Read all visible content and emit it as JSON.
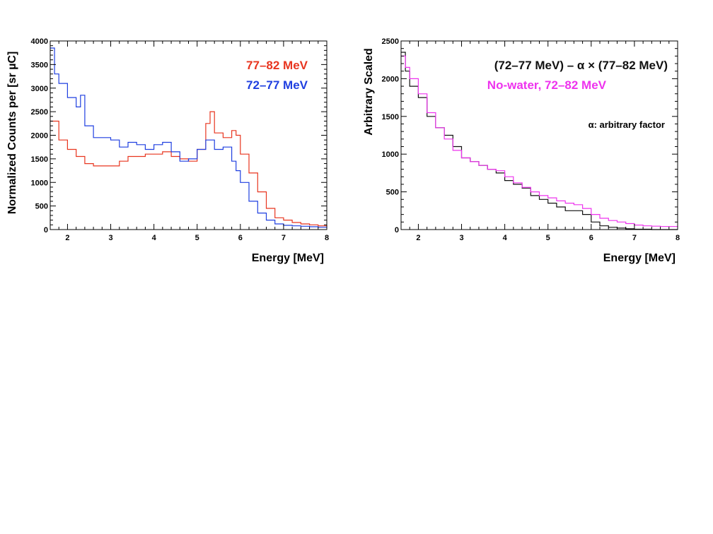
{
  "chart_data": [
    {
      "type": "line",
      "title": "",
      "xlabel": "Energy [MeV]",
      "ylabel": "Normalized Counts per [sr µC]",
      "xlim": [
        1.6,
        8.0
      ],
      "ylim": [
        0,
        4000
      ],
      "xticks": [
        2,
        3,
        4,
        5,
        6,
        7,
        8
      ],
      "yticks": [
        0,
        500,
        1000,
        1500,
        2000,
        2500,
        3000,
        3500,
        4000
      ],
      "grid": false,
      "legend": "top-right",
      "series": [
        {
          "name": "77–82 MeV",
          "color": "#e8351f",
          "x": [
            1.6,
            1.8,
            2.0,
            2.2,
            2.4,
            2.6,
            2.8,
            3.0,
            3.2,
            3.4,
            3.6,
            3.8,
            4.0,
            4.2,
            4.4,
            4.6,
            4.8,
            5.0,
            5.2,
            5.3,
            5.4,
            5.6,
            5.8,
            5.9,
            6.0,
            6.2,
            6.4,
            6.6,
            6.8,
            7.0,
            7.2,
            7.4,
            7.6,
            7.8,
            8.0
          ],
          "y": [
            2300,
            1900,
            1700,
            1550,
            1400,
            1350,
            1350,
            1350,
            1450,
            1550,
            1550,
            1600,
            1600,
            1650,
            1550,
            1500,
            1450,
            1700,
            2250,
            2500,
            2050,
            1950,
            2100,
            2000,
            1600,
            1200,
            800,
            450,
            250,
            200,
            150,
            120,
            100,
            80,
            70
          ]
        },
        {
          "name": "72–77 MeV",
          "color": "#1f3fe0",
          "x": [
            1.6,
            1.7,
            1.8,
            2.0,
            2.2,
            2.3,
            2.4,
            2.6,
            2.8,
            3.0,
            3.2,
            3.4,
            3.6,
            3.8,
            4.0,
            4.2,
            4.4,
            4.6,
            4.8,
            5.0,
            5.2,
            5.4,
            5.6,
            5.8,
            5.9,
            6.0,
            6.2,
            6.4,
            6.6,
            6.8,
            7.0,
            7.2,
            7.4,
            7.6,
            7.8,
            8.0
          ],
          "y": [
            3850,
            3300,
            3100,
            2800,
            2600,
            2850,
            2200,
            1950,
            1950,
            1900,
            1750,
            1850,
            1800,
            1700,
            1800,
            1850,
            1650,
            1450,
            1500,
            1700,
            1900,
            1700,
            1750,
            1450,
            1250,
            1000,
            600,
            350,
            200,
            120,
            90,
            80,
            70,
            60,
            50,
            40
          ]
        }
      ]
    },
    {
      "type": "line",
      "title": "",
      "xlabel": "Energy [MeV]",
      "ylabel": "Arbitrary Scaled",
      "xlim": [
        1.6,
        8.0
      ],
      "ylim": [
        0,
        2500
      ],
      "xticks": [
        2,
        3,
        4,
        5,
        6,
        7,
        8
      ],
      "yticks": [
        0,
        500,
        1000,
        1500,
        2000,
        2500
      ],
      "grid": false,
      "legend": "top-right",
      "annotation": "α: arbitrary factor",
      "series": [
        {
          "name": "(72–77 MeV) – α × (77–82 MeV)",
          "color": "#111111",
          "x": [
            1.6,
            1.7,
            1.8,
            2.0,
            2.2,
            2.4,
            2.6,
            2.8,
            3.0,
            3.2,
            3.4,
            3.6,
            3.8,
            4.0,
            4.2,
            4.4,
            4.6,
            4.8,
            5.0,
            5.2,
            5.4,
            5.6,
            5.8,
            6.0,
            6.2,
            6.4,
            6.6,
            6.8,
            7.0,
            7.2,
            7.4,
            7.6,
            7.8,
            8.0
          ],
          "y": [
            2350,
            2100,
            1900,
            1750,
            1500,
            1350,
            1250,
            1100,
            950,
            900,
            850,
            800,
            750,
            650,
            600,
            550,
            450,
            400,
            350,
            300,
            250,
            250,
            200,
            100,
            50,
            30,
            20,
            10,
            5,
            5,
            0,
            0,
            0,
            0
          ]
        },
        {
          "name": "No-water, 72–82 MeV",
          "color": "#ee33ee",
          "x": [
            1.6,
            1.7,
            1.8,
            2.0,
            2.2,
            2.4,
            2.6,
            2.8,
            3.0,
            3.2,
            3.4,
            3.6,
            3.8,
            4.0,
            4.2,
            4.4,
            4.6,
            4.8,
            5.0,
            5.2,
            5.4,
            5.6,
            5.8,
            6.0,
            6.2,
            6.4,
            6.6,
            6.8,
            7.0,
            7.2,
            7.4,
            7.6,
            7.8,
            8.0
          ],
          "y": [
            2300,
            2150,
            2000,
            1800,
            1550,
            1350,
            1200,
            1050,
            950,
            900,
            850,
            800,
            780,
            700,
            620,
            560,
            500,
            450,
            420,
            380,
            350,
            330,
            280,
            200,
            150,
            120,
            100,
            80,
            60,
            50,
            45,
            40,
            40,
            35
          ]
        }
      ]
    }
  ]
}
